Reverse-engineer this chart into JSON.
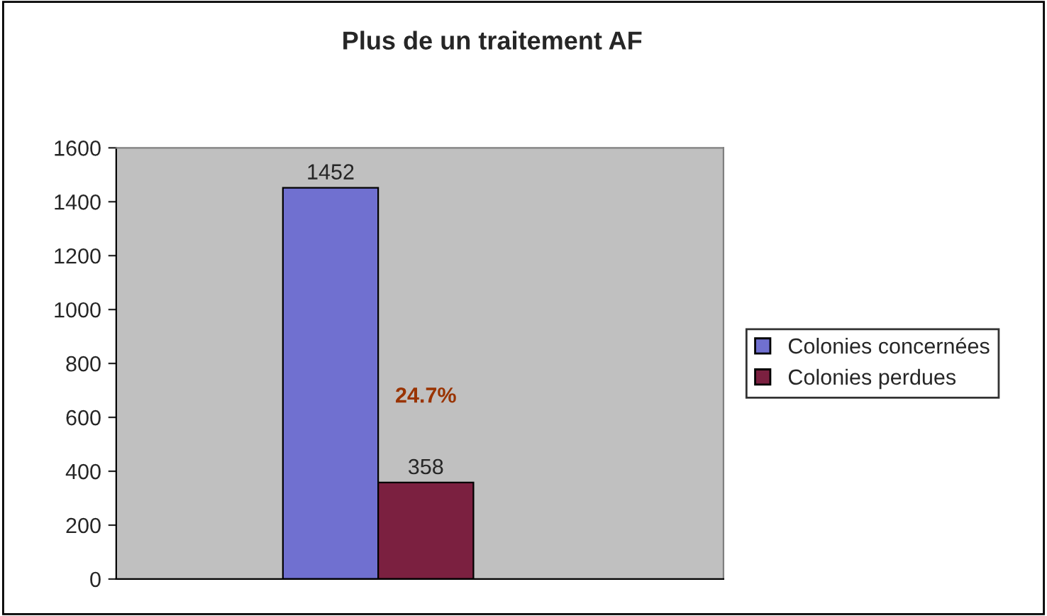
{
  "chart_data": {
    "type": "bar",
    "title": "Plus de un traitement AF",
    "categories": [
      null
    ],
    "series": [
      {
        "name": "Colonies concernées",
        "color": "#7070d0",
        "values": [
          1452
        ]
      },
      {
        "name": "Colonies perdues",
        "color": "#7b2040",
        "values": [
          358
        ]
      }
    ],
    "ylim": [
      0,
      1600
    ],
    "yticks": [
      0,
      200,
      400,
      600,
      800,
      1000,
      1200,
      1400,
      1600
    ],
    "data_labels": true,
    "grid": false,
    "legend": "right",
    "annotations": [
      "24.7%"
    ]
  }
}
